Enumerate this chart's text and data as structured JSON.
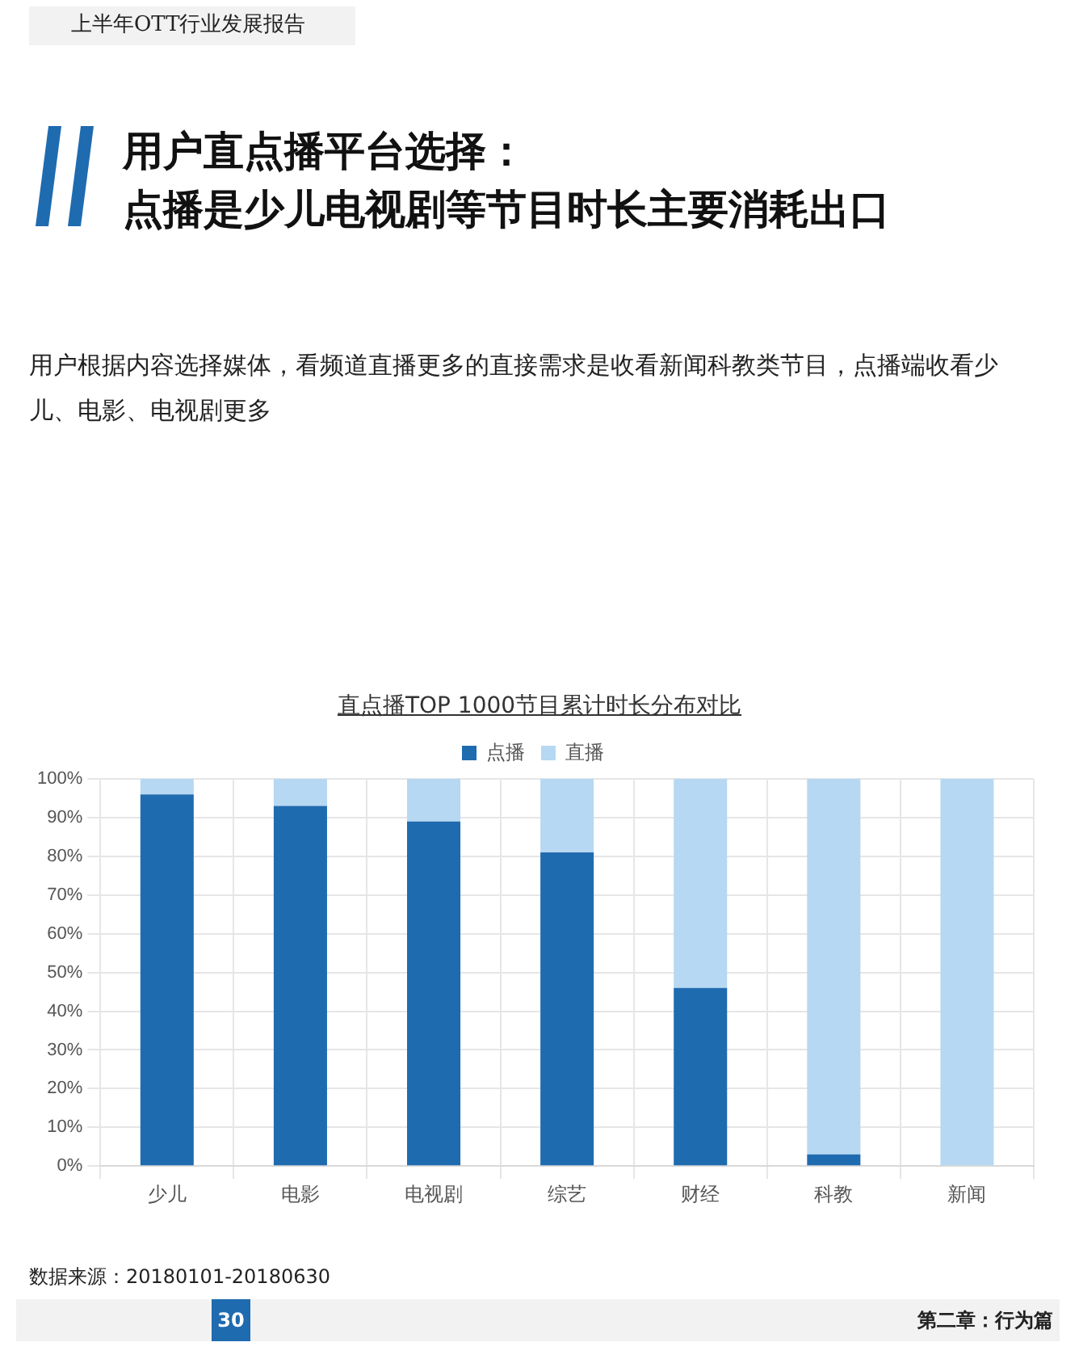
{
  "chart_data": {
    "type": "bar",
    "title": "直点播TOP 1000节目累计时长分布对比",
    "annotations": [
      "上半年OTT行业发展报告",
      "用户直点播平台选择：",
      "点播是少儿电视剧等节目时长主要消耗出口",
      "用户根据内容选择媒体，看频道直播更多的直接需求是收看新闻科教类节目，点播端收看少儿、电影、电视剧更多",
      "数据来源：20180101-20180630",
      "30",
      "第二章：行为篇"
    ],
    "categories": [
      "少儿",
      "电影",
      "电视剧",
      "综艺",
      "财经",
      "科教",
      "新闻"
    ],
    "series": [
      {
        "name": "点播",
        "color": "#1f6bb0",
        "values": [
          96,
          93,
          89,
          81,
          46,
          3,
          0
        ]
      },
      {
        "name": "直播",
        "color": "#b6d8f2",
        "values": [
          4,
          7,
          11,
          19,
          54,
          97,
          100
        ]
      }
    ],
    "stacked": true,
    "ylim": [
      0,
      100
    ],
    "yticks": [
      {
        "value": 0,
        "label": "0%"
      },
      {
        "value": 10,
        "label": "10%"
      },
      {
        "value": 20,
        "label": "20%"
      },
      {
        "value": 30,
        "label": "30%"
      },
      {
        "value": 40,
        "label": "40%"
      },
      {
        "value": 50,
        "label": "50%"
      },
      {
        "value": 60,
        "label": "60%"
      },
      {
        "value": 70,
        "label": "70%"
      },
      {
        "value": 80,
        "label": "80%"
      },
      {
        "value": 90,
        "label": "90%"
      },
      {
        "value": 100,
        "label": "100%"
      }
    ],
    "grid": true,
    "legend": "top"
  }
}
